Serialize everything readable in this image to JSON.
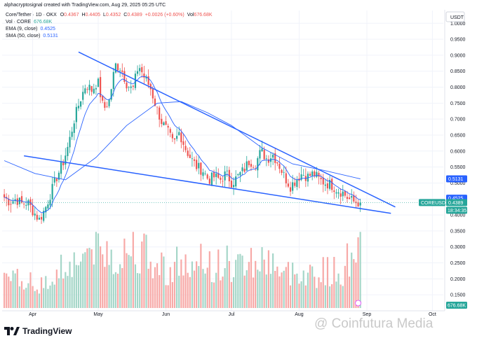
{
  "header": {
    "caption": "alphacryptosignal created with TradingView.com, Aug 29, 2025 05:25 UTC"
  },
  "legend": {
    "symbol_line": "Core/Tether · 1D · OKX",
    "ohlc": {
      "o_label": "O",
      "o": "0.4367",
      "h_label": "H",
      "h": "0.4405",
      "l_label": "L",
      "l": "0.4352",
      "c_label": "C",
      "c": "0.4389",
      "chg": "+0.0026 (+0.60%)",
      "vol_label": "Vol",
      "vol": "676.68K"
    },
    "vol_row": {
      "label": "Vol · CORE",
      "value": "676.68K"
    },
    "ema_row": {
      "label": "EMA (9, close)",
      "value": "0.4525"
    },
    "sma_row": {
      "label": "SMA (50, close)",
      "value": "0.5131"
    }
  },
  "price_scale": {
    "currency": "USDT",
    "ticks": [
      "1.0000",
      "0.9500",
      "0.9000",
      "0.8500",
      "0.8000",
      "0.7500",
      "0.7000",
      "0.6500",
      "0.6000",
      "0.5500",
      "0.5000",
      "0.4500",
      "0.4000",
      "0.3500",
      "0.3000",
      "0.2500",
      "0.2000",
      "0.1500"
    ],
    "badges": {
      "sma": "0.5131",
      "ema": "0.4525",
      "symbol": "COREUSDT",
      "last": "0.4389",
      "countdown": "18:34:35",
      "volume": "676.68K"
    }
  },
  "time_axis": {
    "labels": [
      "Apr",
      "May",
      "Jun",
      "Jul",
      "Aug",
      "Sep",
      "Oct"
    ]
  },
  "footer": {
    "brand": "TradingView",
    "watermark": "@ Coinfutura Media"
  },
  "colors": {
    "up": "#26a69a",
    "down": "#ef5350",
    "trend": "#2962ff",
    "ema": "#2962ff",
    "sma": "#2962ff",
    "vol_up": "#a5d6c8",
    "vol_down": "#f7a9a7",
    "grid": "#f0f3fa",
    "text": "#131722"
  },
  "chart_data": {
    "type": "candlestick",
    "title": "Core/Tether · 1D · OKX",
    "x_unit": "date",
    "y_unit": "USDT",
    "ylim": [
      0.1,
      1.04
    ],
    "xlim": [
      "2025-03-18",
      "2025-10-06"
    ],
    "grid": true,
    "candle_x_range": [
      "2025-03-19",
      "2025-08-29"
    ],
    "waypoints": [
      [
        0.455,
        0.57
      ],
      [
        0.44,
        0.57
      ],
      [
        0.45,
        0.6
      ],
      [
        0.435,
        0.56
      ],
      [
        0.44,
        0.64
      ],
      [
        0.41,
        0.59
      ],
      [
        0.385,
        0.54
      ],
      [
        0.42,
        0.56
      ],
      [
        0.47,
        0.62
      ],
      [
        0.52,
        0.66
      ],
      [
        0.56,
        0.7
      ],
      [
        0.62,
        0.72
      ],
      [
        0.7,
        0.72
      ],
      [
        0.76,
        0.76
      ],
      [
        0.81,
        0.78
      ],
      [
        0.79,
        0.8
      ],
      [
        0.82,
        0.79
      ],
      [
        0.73,
        0.74
      ],
      [
        0.76,
        0.79
      ],
      [
        0.87,
        0.74
      ],
      [
        0.86,
        0.72
      ],
      [
        0.81,
        0.78
      ],
      [
        0.79,
        0.82
      ],
      [
        0.87,
        0.76
      ],
      [
        0.83,
        0.77
      ],
      [
        0.8,
        0.71
      ],
      [
        0.74,
        0.69
      ],
      [
        0.69,
        0.7
      ],
      [
        0.66,
        0.67
      ],
      [
        0.62,
        0.68
      ],
      [
        0.66,
        0.72
      ],
      [
        0.61,
        0.7
      ],
      [
        0.575,
        0.67
      ],
      [
        0.55,
        0.66
      ],
      [
        0.54,
        0.71
      ],
      [
        0.51,
        0.74
      ],
      [
        0.52,
        0.68
      ],
      [
        0.51,
        0.7
      ],
      [
        0.53,
        0.72
      ],
      [
        0.5,
        0.68
      ],
      [
        0.52,
        0.7
      ],
      [
        0.54,
        0.72
      ],
      [
        0.57,
        0.74
      ],
      [
        0.56,
        0.71
      ],
      [
        0.6,
        0.73
      ],
      [
        0.575,
        0.72
      ],
      [
        0.59,
        0.74
      ],
      [
        0.56,
        0.68
      ],
      [
        0.52,
        0.63
      ],
      [
        0.49,
        0.65
      ],
      [
        0.51,
        0.66
      ],
      [
        0.53,
        0.68
      ],
      [
        0.52,
        0.65
      ],
      [
        0.53,
        0.66
      ],
      [
        0.51,
        0.64
      ],
      [
        0.5,
        0.66
      ],
      [
        0.495,
        0.64
      ],
      [
        0.48,
        0.65
      ],
      [
        0.47,
        0.66
      ],
      [
        0.45,
        0.72
      ],
      [
        0.44,
        0.8
      ],
      [
        0.439,
        0.9
      ]
    ],
    "volume_range_usdt": [
      0.154,
      0.347
    ],
    "trendlines": [
      {
        "name": "upper",
        "from": [
          "2025-04-22",
          0.91
        ],
        "to": [
          "2025-09-14",
          0.425
        ]
      },
      {
        "name": "lower",
        "from": [
          "2025-03-28",
          0.585
        ],
        "to": [
          "2025-09-12",
          0.405
        ]
      }
    ],
    "indicators": [
      {
        "name": "EMA (9, close)",
        "last": 0.4525
      },
      {
        "name": "SMA (50, close)",
        "last": 0.5131,
        "path": [
          [
            "2025-03-19",
            0.57
          ],
          [
            "2025-04-02",
            0.53
          ],
          [
            "2025-04-16",
            0.51
          ],
          [
            "2025-04-30",
            0.58
          ],
          [
            "2025-05-14",
            0.68
          ],
          [
            "2025-05-28",
            0.75
          ],
          [
            "2025-06-08",
            0.755
          ],
          [
            "2025-06-20",
            0.72
          ],
          [
            "2025-07-01",
            0.68
          ],
          [
            "2025-07-15",
            0.61
          ],
          [
            "2025-07-29",
            0.56
          ],
          [
            "2025-08-12",
            0.54
          ],
          [
            "2025-08-29",
            0.513
          ]
        ]
      }
    ],
    "volume_unit": "CORE",
    "volume_last": "676.68K"
  }
}
